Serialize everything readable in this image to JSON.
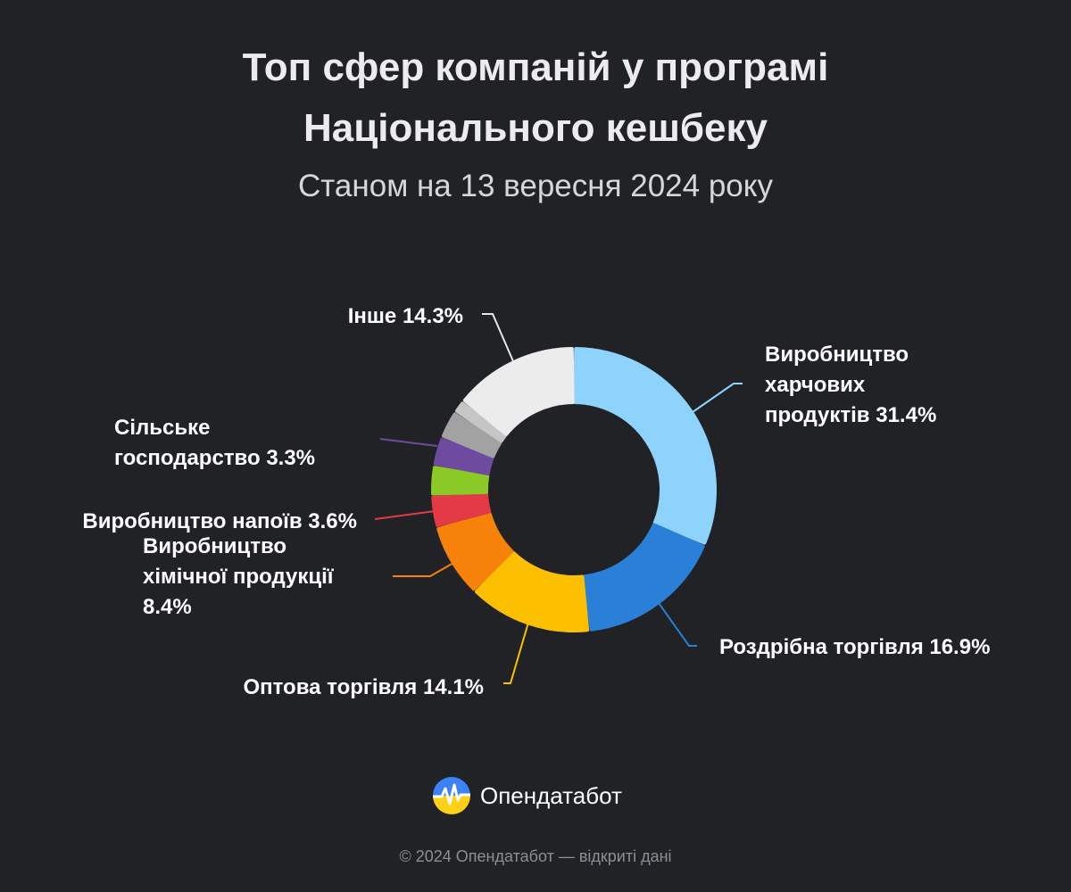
{
  "header": {
    "title_line1": "Топ сфер компаній у програмі",
    "title_line2": "Національного кешбеку",
    "subtitle": "Станом на 13 вересня 2024 року"
  },
  "chart_data": {
    "type": "pie",
    "variant": "donut",
    "title": "Топ сфер компаній у програмі Національного кешбеку",
    "subtitle": "Станом на 13 вересня 2024 року",
    "unit": "%",
    "slices": [
      {
        "name": "Виробництво харчових продуктів",
        "value": 31.4,
        "color": "#8dd3fc",
        "label_lines": [
          "Виробництво",
          "харчових",
          "продуктів 31.4%"
        ]
      },
      {
        "name": "Роздрібна торгівля",
        "value": 16.9,
        "color": "#2a7fd6",
        "label_lines": [
          "Роздрібна торгівля 16.9%"
        ]
      },
      {
        "name": "Оптова торгівля",
        "value": 14.1,
        "color": "#fcc000",
        "label_lines": [
          "Оптова торгівля 14.1%"
        ]
      },
      {
        "name": "Виробництво хімічної продукції",
        "value": 8.4,
        "color": "#f7820a",
        "label_lines": [
          "Виробництво",
          "хімічної продукції",
          "8.4%"
        ]
      },
      {
        "name": "Виробництво напоїв",
        "value": 3.6,
        "color": "#e33a46",
        "label_lines": [
          "Виробництво напоїв 3.6%"
        ]
      },
      {
        "name": "",
        "value": 3.4,
        "color": "#8ac926",
        "label_lines": []
      },
      {
        "name": "Сільське господарство",
        "value": 3.3,
        "color": "#6f4ba0",
        "label_lines": [
          "Сільське",
          "господарство 3.3%"
        ]
      },
      {
        "name": "",
        "value": 3.2,
        "color": "#a2a2a2",
        "label_lines": []
      },
      {
        "name": "",
        "value": 1.5,
        "color": "#c6c6c6",
        "label_lines": []
      },
      {
        "name": "Інше",
        "value": 14.3,
        "color": "#ececec",
        "label_lines": [
          "Інше 14.3%"
        ]
      }
    ]
  },
  "brand": {
    "name": "Опендатабот",
    "logo_icon": "opendatabot-logo-icon",
    "logo_colors": [
      "#3b82f6",
      "#fcd116"
    ]
  },
  "footer": {
    "text": "© 2024 Опендатабот — відкриті дані"
  }
}
